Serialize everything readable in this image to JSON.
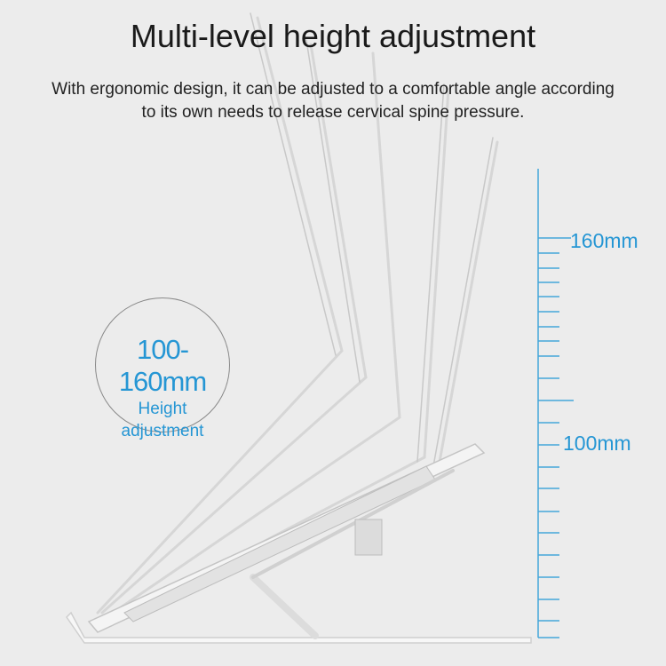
{
  "title": "Multi-level height adjustment",
  "subtitle_lines": [
    "With ergonomic design, it can be adjusted to a comfortable angle according",
    "to its own needs to release cervical spine pressure."
  ],
  "badge": {
    "range": "100-160mm",
    "label_line1": "Height",
    "label_line2": "adjustment"
  },
  "scale": {
    "max_label": "160mm",
    "min_label": "100mm"
  },
  "colors": {
    "accent": "#2596d4",
    "background": "#ececec",
    "text": "#1a1a1a"
  }
}
